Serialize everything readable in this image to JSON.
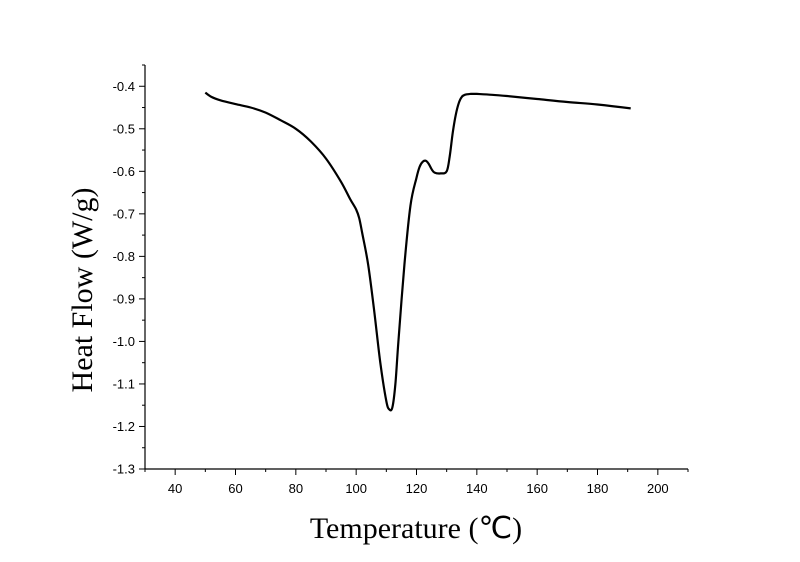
{
  "chart_data": {
    "type": "line",
    "xlabel": "Temperature (℃)",
    "ylabel": "Heat Flow (W/g)",
    "xlim": [
      30,
      210
    ],
    "ylim": [
      -1.3,
      -0.35
    ],
    "x_ticks": [
      40,
      60,
      80,
      100,
      120,
      140,
      160,
      180,
      200
    ],
    "y_ticks": [
      -0.4,
      -0.5,
      -0.6,
      -0.7,
      -0.8,
      -0.9,
      -1.0,
      -1.1,
      -1.2,
      -1.3
    ],
    "x_tick_labels": [
      "40",
      "60",
      "80",
      "100",
      "120",
      "140",
      "160",
      "180",
      "200"
    ],
    "y_tick_labels": [
      "-0.4",
      "-0.5",
      "-0.6",
      "-0.7",
      "-0.8",
      "-0.9",
      "-1.0",
      "-1.1",
      "-1.2",
      "-1.3"
    ],
    "grid": false,
    "series": [
      {
        "color": "#000000",
        "x": [
          50,
          52,
          55,
          60,
          65,
          70,
          75,
          80,
          85,
          90,
          95,
          98,
          100,
          101,
          102,
          104,
          106,
          108,
          110,
          111,
          112,
          113,
          114,
          116,
          118,
          120,
          121,
          122,
          123,
          124,
          125,
          126,
          128,
          130,
          131,
          132,
          133,
          134,
          135,
          136,
          138,
          140,
          145,
          150,
          160,
          170,
          180,
          191
        ],
        "y": [
          -0.415,
          -0.425,
          -0.433,
          -0.442,
          -0.45,
          -0.462,
          -0.48,
          -0.5,
          -0.53,
          -0.57,
          -0.625,
          -0.665,
          -0.69,
          -0.71,
          -0.745,
          -0.82,
          -0.93,
          -1.05,
          -1.14,
          -1.16,
          -1.155,
          -1.1,
          -1.0,
          -0.82,
          -0.68,
          -0.615,
          -0.59,
          -0.578,
          -0.575,
          -0.582,
          -0.595,
          -0.603,
          -0.605,
          -0.6,
          -0.565,
          -0.51,
          -0.468,
          -0.44,
          -0.425,
          -0.42,
          -0.418,
          -0.418,
          -0.42,
          -0.423,
          -0.43,
          -0.437,
          -0.443,
          -0.452
        ]
      }
    ]
  }
}
